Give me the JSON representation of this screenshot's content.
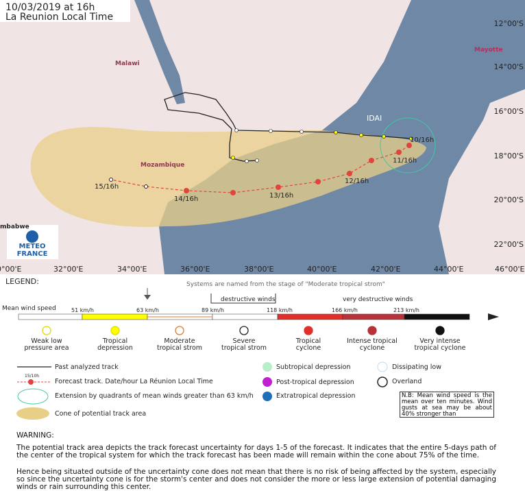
{
  "header": {
    "date": "10/03/2019 at 16h",
    "timezone": "La Reunion Local Time"
  },
  "map": {
    "places": [
      "Malawi",
      "Mozambique",
      "Mayotte",
      "mbabwe"
    ],
    "storm_name": "IDAI",
    "latitudes": [
      "12°00'S",
      "14°00'S",
      "16°00'S",
      "18°00'S",
      "20°00'S",
      "22°00'S"
    ],
    "longitudes": [
      "0°00'E",
      "32°00'E",
      "34°00'E",
      "36°00'E",
      "38°00'E",
      "40°00'E",
      "42°00'E",
      "44°00'E",
      "46°00'E"
    ],
    "track_labels": [
      "10/16h",
      "11/16h",
      "12/16h",
      "13/16h",
      "14/16h",
      "15/16h"
    ],
    "logo": [
      "METEO",
      "FRANCE"
    ]
  },
  "legend": {
    "title": "LEGEND:",
    "naming_note": "Systems are named from the stage of \"Moderate tropical strom\"",
    "destructive": "destructive winds",
    "very_destructive": "very destructive winds",
    "scale_title": "Mean wind speed",
    "speeds": [
      "51 km/h",
      "63 km/h",
      "89 km/h",
      "118 km/h",
      "166 km/h",
      "213 km/h"
    ],
    "categories": [
      [
        "Weak low",
        "pressure area"
      ],
      [
        "Tropical",
        "depression"
      ],
      [
        "Moderate",
        "tropical strom"
      ],
      [
        "Severe",
        "tropical strom"
      ],
      [
        "Tropical",
        "cyclone"
      ],
      [
        "Intense tropical",
        "cyclone"
      ],
      [
        "Very intense",
        "tropical cyclone"
      ]
    ],
    "past_track": "Past analyzed track",
    "forecast_track": "Forecast track. Date/hour La Réunion Local Time",
    "forecast_sample": "15/10h",
    "extension": "Extension by quadrants of mean winds greater than 63 km/h",
    "cone": "Cone of potential track area",
    "subtropical": "Subtropical depression",
    "post_tropical": "Post-tropical depression",
    "extratropical": "Extratropical depression",
    "dissipating": "Dissipating low",
    "overland": "Overland",
    "note": "N.B: Mean wind speed is the mean over ten minutes. Wind gusts at sea may be about 40% stronger than"
  },
  "warning": {
    "title": "WARNING:",
    "paragraphs": [
      "The potential track area depicts the track forecast uncertainty for days 1-5 of the forecast. It indicates that the entire 5-days path of the center of the tropical system for which the track forecast has been made will remain within the cone about 75% of the time.",
      "Hence being situated outside of the uncertainty cone does not mean that there is no risk of being affected by the system, especially so since the uncertainty cone is for the storm's center and does not consider the more or less large extension of potential damaging winds or rain surrounding this center."
    ]
  }
}
